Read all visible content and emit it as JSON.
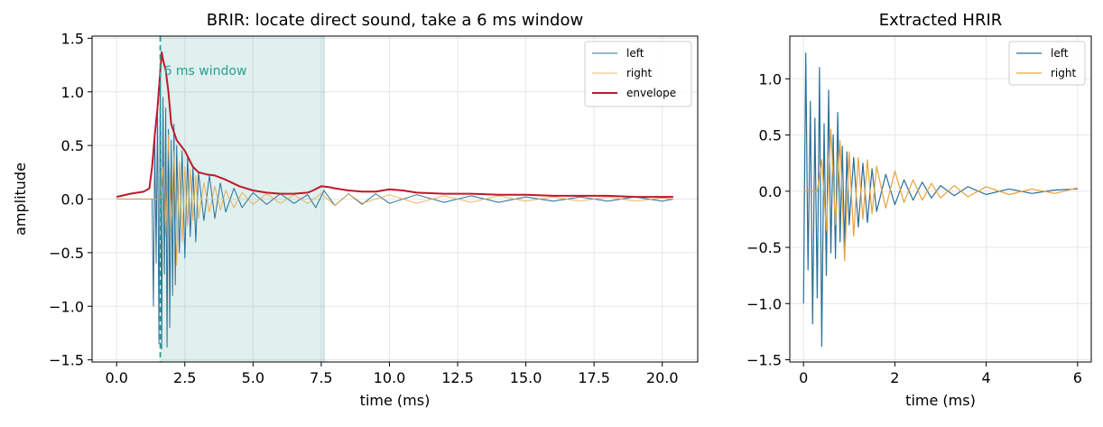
{
  "chart_data": [
    {
      "type": "line",
      "title": "BRIR: locate direct sound, take a 6 ms window",
      "xlabel": "time (ms)",
      "ylabel": "amplitude",
      "xlim": [
        -0.9,
        21.3
      ],
      "ylim": [
        -1.52,
        1.52
      ],
      "xticks": [
        0,
        2.5,
        5,
        7.5,
        10,
        12.5,
        15,
        17.5,
        20
      ],
      "xtick_labels": [
        "0.0",
        "2.5",
        "5.0",
        "7.5",
        "10.0",
        "12.5",
        "15.0",
        "17.5",
        "20.0"
      ],
      "yticks": [
        -1.5,
        -1.0,
        -0.5,
        0.0,
        0.5,
        1.0,
        1.5
      ],
      "ytick_labels": [
        "−1.5",
        "−1.0",
        "−0.5",
        "0.0",
        "0.5",
        "1.0",
        "1.5"
      ],
      "grid": true,
      "legend_position": "top-right",
      "window": {
        "start": 1.6,
        "end": 7.6,
        "label": "6 ms window",
        "color": "#2a9d8f"
      },
      "series": [
        {
          "name": "left",
          "color": "#2a6f97",
          "x": [
            0,
            1.3,
            1.35,
            1.4,
            1.45,
            1.5,
            1.55,
            1.6,
            1.65,
            1.7,
            1.75,
            1.8,
            1.85,
            1.9,
            1.95,
            2.0,
            2.05,
            2.1,
            2.15,
            2.2,
            2.3,
            2.4,
            2.5,
            2.6,
            2.7,
            2.8,
            2.9,
            3.0,
            3.2,
            3.4,
            3.6,
            3.8,
            4.0,
            4.3,
            4.6,
            5.0,
            5.5,
            6.0,
            6.5,
            7.0,
            7.3,
            7.6,
            8.0,
            8.5,
            9.0,
            9.5,
            10.0,
            11,
            12,
            13,
            14,
            15,
            16,
            17,
            18,
            19,
            20,
            20.4
          ],
          "y": [
            0,
            0,
            -1.0,
            0.6,
            -0.6,
            0.9,
            -1.35,
            1.25,
            -1.4,
            0.95,
            -0.7,
            0.85,
            -1.38,
            0.65,
            -1.2,
            0.55,
            -0.9,
            0.7,
            -0.8,
            0.5,
            -0.5,
            0.45,
            -0.55,
            0.4,
            -0.35,
            0.3,
            -0.4,
            0.25,
            -0.2,
            0.22,
            -0.18,
            0.15,
            -0.12,
            0.1,
            -0.08,
            0.06,
            -0.05,
            0.05,
            -0.04,
            0.04,
            -0.08,
            0.08,
            -0.06,
            0.05,
            -0.05,
            0.05,
            -0.04,
            0.04,
            -0.03,
            0.03,
            -0.03,
            0.02,
            -0.02,
            0.02,
            -0.02,
            0.02,
            -0.02,
            0
          ],
          "stroke_width": 1
        },
        {
          "name": "right",
          "color": "#e9a23b",
          "x": [
            0,
            1.6,
            1.7,
            1.8,
            1.9,
            2.0,
            2.1,
            2.2,
            2.3,
            2.4,
            2.5,
            2.6,
            2.7,
            2.8,
            2.9,
            3.0,
            3.2,
            3.4,
            3.6,
            3.8,
            4.0,
            4.3,
            4.6,
            5.0,
            5.5,
            6.0,
            6.5,
            7.0,
            7.5,
            8.0,
            8.5,
            9.0,
            10,
            11,
            12,
            13,
            14,
            15,
            16,
            17,
            18,
            19,
            20,
            20.4
          ],
          "y": [
            0,
            0,
            0.3,
            -0.35,
            0.6,
            -0.3,
            0.45,
            -0.62,
            0.35,
            -0.4,
            0.3,
            -0.25,
            0.28,
            -0.2,
            0.22,
            -0.18,
            0.15,
            -0.12,
            0.12,
            -0.1,
            0.08,
            -0.08,
            0.06,
            -0.05,
            0.05,
            -0.04,
            0.04,
            -0.04,
            0.05,
            -0.06,
            0.05,
            -0.04,
            0.04,
            -0.04,
            0.03,
            -0.03,
            0.03,
            -0.02,
            0.02,
            -0.02,
            0.02,
            -0.02,
            0.01,
            0
          ],
          "stroke_width": 0.8
        },
        {
          "name": "envelope",
          "color": "#c0182a",
          "x": [
            0,
            0.5,
            1.0,
            1.2,
            1.3,
            1.4,
            1.5,
            1.6,
            1.65,
            1.7,
            1.8,
            1.9,
            2.0,
            2.2,
            2.5,
            2.8,
            3.0,
            3.3,
            3.6,
            4.0,
            4.5,
            5.0,
            5.5,
            6.0,
            6.5,
            7.0,
            7.2,
            7.5,
            7.8,
            8.0,
            8.5,
            9.0,
            9.5,
            10.0,
            10.5,
            11,
            12,
            13,
            14,
            15,
            16,
            17,
            18,
            19,
            20,
            20.4
          ],
          "y": [
            0.02,
            0.05,
            0.07,
            0.1,
            0.3,
            0.6,
            0.85,
            1.2,
            1.37,
            1.3,
            1.2,
            1.0,
            0.7,
            0.55,
            0.45,
            0.3,
            0.25,
            0.23,
            0.22,
            0.18,
            0.12,
            0.08,
            0.06,
            0.05,
            0.05,
            0.06,
            0.08,
            0.12,
            0.11,
            0.1,
            0.08,
            0.07,
            0.07,
            0.09,
            0.08,
            0.06,
            0.05,
            0.05,
            0.04,
            0.04,
            0.03,
            0.03,
            0.03,
            0.02,
            0.02,
            0.02
          ],
          "stroke_width": 2
        }
      ]
    },
    {
      "type": "line",
      "title": "Extracted HRIR",
      "xlabel": "time (ms)",
      "ylabel": "",
      "xlim": [
        -0.3,
        6.3
      ],
      "ylim": [
        -1.52,
        1.38
      ],
      "xticks": [
        0,
        2,
        4,
        6
      ],
      "xtick_labels": [
        "0",
        "2",
        "4",
        "6"
      ],
      "yticks": [
        -1.5,
        -1.0,
        -0.5,
        0.0,
        0.5,
        1.0
      ],
      "ytick_labels": [
        "−1.5",
        "−1.0",
        "−0.5",
        "0.0",
        "0.5",
        "1.0"
      ],
      "grid": true,
      "legend_position": "top-right",
      "series": [
        {
          "name": "left",
          "color": "#2a6f97",
          "x": [
            0,
            0.05,
            0.1,
            0.15,
            0.2,
            0.25,
            0.3,
            0.35,
            0.4,
            0.45,
            0.5,
            0.55,
            0.6,
            0.65,
            0.7,
            0.75,
            0.8,
            0.85,
            0.9,
            0.95,
            1.0,
            1.1,
            1.2,
            1.3,
            1.4,
            1.5,
            1.6,
            1.8,
            2.0,
            2.2,
            2.4,
            2.6,
            2.8,
            3.0,
            3.3,
            3.6,
            4.0,
            4.5,
            5.0,
            5.5,
            6.0
          ],
          "y": [
            -1.0,
            1.23,
            -0.7,
            0.8,
            -1.18,
            0.65,
            -0.95,
            1.1,
            -1.38,
            0.6,
            -0.75,
            0.9,
            -0.55,
            0.5,
            -0.6,
            0.7,
            -0.45,
            0.4,
            -0.5,
            0.35,
            -0.3,
            0.3,
            -0.32,
            0.25,
            -0.28,
            0.2,
            -0.18,
            0.15,
            -0.12,
            0.1,
            -0.08,
            0.08,
            -0.06,
            0.05,
            -0.04,
            0.04,
            -0.03,
            0.02,
            -0.02,
            0.01,
            0.02
          ],
          "stroke_width": 1.2
        },
        {
          "name": "right",
          "color": "#e9a23b",
          "x": [
            0,
            0.3,
            0.4,
            0.5,
            0.6,
            0.7,
            0.8,
            0.9,
            1.0,
            1.1,
            1.2,
            1.3,
            1.4,
            1.5,
            1.6,
            1.8,
            2.0,
            2.2,
            2.4,
            2.6,
            2.8,
            3.0,
            3.3,
            3.6,
            4.0,
            4.5,
            5.0,
            5.5,
            6.0
          ],
          "y": [
            0,
            0,
            0.28,
            -0.35,
            0.55,
            -0.3,
            0.45,
            -0.62,
            0.35,
            -0.4,
            0.3,
            -0.25,
            0.28,
            -0.2,
            0.22,
            -0.15,
            0.18,
            -0.1,
            0.1,
            -0.08,
            0.07,
            -0.06,
            0.05,
            -0.05,
            0.04,
            -0.03,
            0.02,
            -0.02,
            0.03
          ],
          "stroke_width": 1.2
        }
      ]
    }
  ]
}
